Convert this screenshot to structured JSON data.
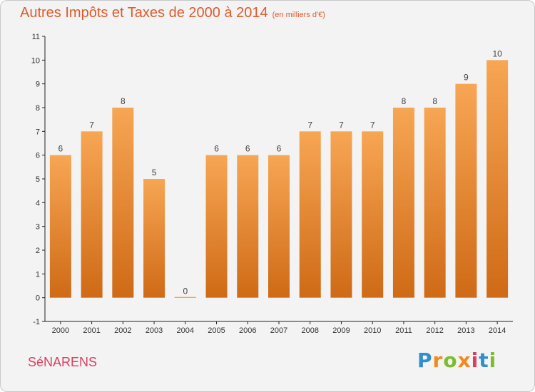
{
  "header": {
    "title": "Autres Impôts et Taxes de 2000 à 2014",
    "unit": "(en milliers d'€)"
  },
  "footer": {
    "commune": "SéNARENS",
    "brand": "Proxiti"
  },
  "colors": {
    "bar_top": "#f7a654",
    "bar_bottom": "#cf6a16",
    "title": "#e05a2b",
    "commune": "#d9405f",
    "brand": [
      "#2e8fcf",
      "#f08a1c",
      "#7abf2a",
      "#f08a1c",
      "#d9405f",
      "#2e8fcf",
      "#7abf2a"
    ]
  },
  "chart_data": {
    "type": "bar",
    "title": "Autres Impôts et Taxes de 2000 à 2014",
    "subtitle": "(en milliers d'€)",
    "categories": [
      "2000",
      "2001",
      "2002",
      "2003",
      "2004",
      "2005",
      "2006",
      "2007",
      "2008",
      "2009",
      "2010",
      "2011",
      "2012",
      "2013",
      "2014"
    ],
    "values": [
      6,
      7,
      8,
      5,
      0,
      6,
      6,
      6,
      7,
      7,
      7,
      8,
      8,
      9,
      10
    ],
    "ylim": [
      -1,
      11
    ],
    "yticks": [
      -1,
      0,
      1,
      2,
      3,
      4,
      5,
      6,
      7,
      8,
      9,
      10,
      11
    ],
    "grid": false,
    "legend": "none"
  }
}
